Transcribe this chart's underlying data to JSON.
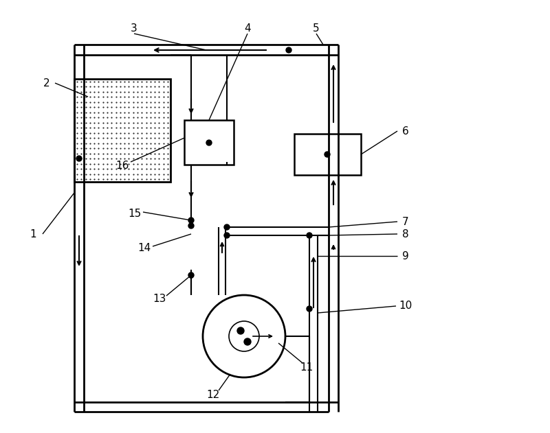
{
  "bg_color": "#ffffff",
  "line_color": "#000000",
  "figsize": [
    8.0,
    6.31
  ],
  "dpi": 100
}
